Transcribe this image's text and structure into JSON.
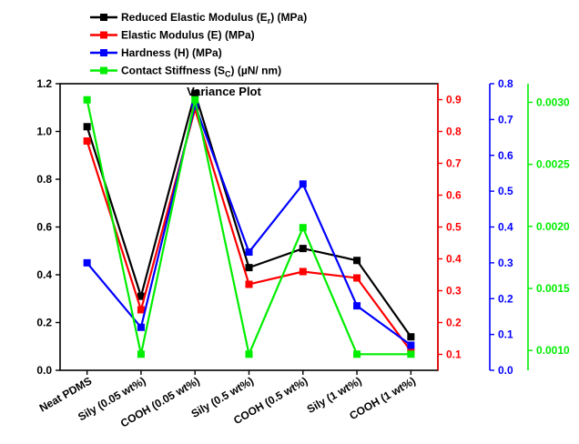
{
  "chart_data": {
    "type": "line",
    "title": "Variance Plot",
    "categories": [
      "Neat PDMS",
      "Sily (0.05 wt%)",
      "COOH (0.05 wt%)",
      "Sily (0.5 wt%)",
      "COOH (0.5 wt%)",
      "Sily (1 wt%)",
      "COOH (1 wt%)"
    ],
    "legend_position": "top",
    "grid": false,
    "axes": [
      {
        "id": "er",
        "side": "left",
        "range": [
          0,
          1.2
        ],
        "ticks": [
          "0.0",
          "0.2",
          "0.4",
          "0.6",
          "0.8",
          "1.0",
          "1.2"
        ],
        "color": "#000000"
      },
      {
        "id": "e",
        "side": "right",
        "range": [
          0.05,
          0.95
        ],
        "ticks": [
          "0.1",
          "0.2",
          "0.3",
          "0.4",
          "0.5",
          "0.6",
          "0.7",
          "0.8",
          "0.9"
        ],
        "color": "#ff0000"
      },
      {
        "id": "h",
        "side": "right",
        "range": [
          0,
          0.8
        ],
        "ticks": [
          "0.0",
          "0.1",
          "0.2",
          "0.3",
          "0.4",
          "0.5",
          "0.6",
          "0.7",
          "0.8"
        ],
        "color": "#0000ff"
      },
      {
        "id": "sc",
        "side": "right",
        "range": [
          0.00084,
          0.00315
        ],
        "ticks": [
          "0.0010",
          "0.0015",
          "0.0020",
          "0.0025",
          "0.0030"
        ],
        "color": "#00ee00"
      }
    ],
    "series": [
      {
        "name": "Reduced Elastic Modulus (E",
        "sub": "r",
        "tail": ") (MPa)",
        "axis": "er",
        "color": "#000000",
        "values": [
          1.02,
          0.31,
          1.16,
          0.43,
          0.51,
          0.46,
          0.14
        ]
      },
      {
        "name": "Elastic Modulus (E) (MPa)",
        "sub": "",
        "tail": "",
        "axis": "e",
        "color": "#ff0000",
        "values": [
          0.77,
          0.24,
          0.87,
          0.32,
          0.36,
          0.34,
          0.11
        ]
      },
      {
        "name": "Hardness (H) (MPa)",
        "sub": "",
        "tail": "",
        "axis": "h",
        "color": "#0000ff",
        "values": [
          0.3,
          0.12,
          0.74,
          0.33,
          0.52,
          0.18,
          0.07
        ]
      },
      {
        "name": "Contact Stiffness (S",
        "sub": "C",
        "tail": ") (µN/ nm)",
        "axis": "sc",
        "color": "#00ee00",
        "values": [
          0.00302,
          0.00097,
          0.00302,
          0.00097,
          0.00199,
          0.00097,
          0.00097
        ]
      }
    ]
  }
}
